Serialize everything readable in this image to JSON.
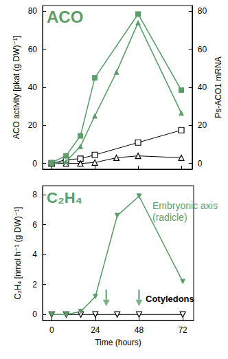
{
  "chart_data": [
    {
      "type": "line",
      "annotations": [
        {
          "text": "ACO",
          "color": "#5c9e6a"
        }
      ],
      "y_label": "ACO activity [pkat (g DW)⁻¹]",
      "y2_label": "Ps-ACO1 mRNA",
      "xlim": [
        -5,
        78
      ],
      "xticks": [
        0,
        24,
        48,
        72
      ],
      "ylim": [
        -3,
        83
      ],
      "yticks": [
        0,
        20,
        40,
        60,
        80
      ],
      "y2lim": [
        -3,
        83
      ],
      "y2ticks": [
        0,
        20,
        40,
        60,
        80
      ],
      "tick_labels": "y",
      "series": [
        {
          "color": "#5c9e6a",
          "marker": "square",
          "line_style": "solid",
          "axis": "y2",
          "x": [
            0,
            8,
            16,
            24,
            48,
            72
          ],
          "values": [
            0.5,
            4,
            14.5,
            45,
            78.5,
            38.5
          ]
        },
        {
          "color": "#5c9e6a",
          "marker": "triangle",
          "line_style": "solid",
          "x": [
            0,
            8,
            16,
            24,
            36,
            48,
            72
          ],
          "values": [
            0,
            1,
            9,
            25,
            48,
            74,
            26.5
          ]
        },
        {
          "color": "#000000",
          "marker": "square-open",
          "line_style": "solid",
          "axis": "y2",
          "x": [
            0,
            8,
            16,
            24,
            48,
            72
          ],
          "values": [
            0,
            2,
            2.5,
            4.5,
            11,
            17.5
          ]
        },
        {
          "color": "#000000",
          "marker": "triangle-open",
          "line_style": "solid",
          "x": [
            0,
            8,
            16,
            24,
            36,
            48,
            72
          ],
          "values": [
            0,
            0,
            0,
            0.5,
            3,
            4,
            3
          ]
        }
      ]
    },
    {
      "type": "line",
      "annotations": [
        {
          "text": "C₂H₄",
          "color": "#5c9e6a"
        },
        {
          "text": "Embryonic axis (radicle)",
          "color": "#5c9e6a"
        },
        {
          "text": "Cotyledons",
          "color": "#000000"
        }
      ],
      "x_label": "Time (hours)",
      "y_label": "C₂H₄ [nmol h⁻¹ (g DW)⁻¹]",
      "xlim": [
        -5,
        78
      ],
      "xticks": [
        0,
        24,
        48,
        72
      ],
      "ylim": [
        -0.4,
        8.6
      ],
      "yticks": [
        0,
        2,
        4,
        6,
        8
      ],
      "series": [
        {
          "color": "#5c9e6a",
          "marker": "triangle-down",
          "line_style": "solid",
          "x": [
            0,
            8,
            16,
            24,
            36,
            48,
            72
          ],
          "values": [
            0,
            0,
            0.2,
            1.2,
            6.6,
            7.9,
            2.2
          ]
        },
        {
          "color": "#000000",
          "marker": "triangle-down-open",
          "line_style": "solid",
          "x": [
            0,
            8,
            16,
            24,
            36,
            48,
            72
          ],
          "values": [
            0,
            0,
            0,
            0,
            0,
            0,
            0
          ]
        },
        {
          "color": "#5c9e6a",
          "marker": "arrow",
          "line_style": "none",
          "x": [
            30,
            48
          ],
          "values": [
            1.1,
            1.1
          ]
        }
      ]
    }
  ]
}
